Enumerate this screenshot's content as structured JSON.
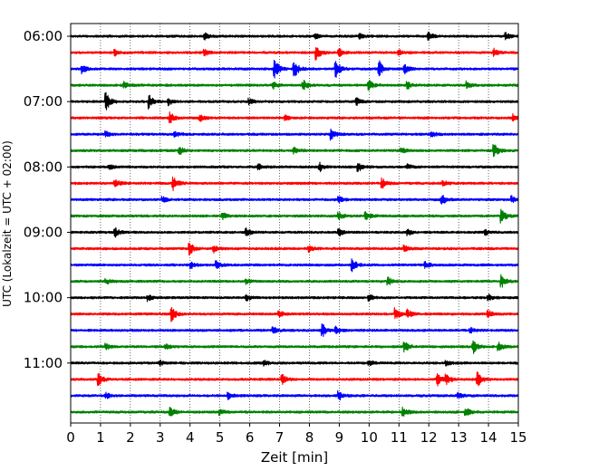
{
  "chart_data": {
    "type": "line",
    "title": "",
    "xlabel": "Zeit  [min]",
    "ylabel": "UTC (Lokalzeit = UTC + 02:00)",
    "xlim": [
      0,
      15
    ],
    "x_ticks": [
      0,
      1,
      2,
      3,
      4,
      5,
      6,
      7,
      8,
      9,
      10,
      11,
      12,
      13,
      14,
      15
    ],
    "y_tick_labels": [
      "06:00",
      "07:00",
      "08:00",
      "09:00",
      "10:00",
      "11:00"
    ],
    "y_tick_trace_index": [
      0,
      4,
      8,
      12,
      16,
      20
    ],
    "grid": "vertical",
    "colors_cycle": [
      "#000000",
      "#ff0000",
      "#0000ff",
      "#008000"
    ],
    "traces": [
      {
        "start": "06:00",
        "color": "#000000",
        "events": [
          [
            4.5,
            0.35
          ],
          [
            8.2,
            0.3
          ],
          [
            9.7,
            0.3
          ],
          [
            12.0,
            0.45
          ],
          [
            14.6,
            0.35
          ]
        ]
      },
      {
        "start": "06:15",
        "color": "#ff0000",
        "events": [
          [
            1.5,
            0.3
          ],
          [
            4.5,
            0.3
          ],
          [
            8.25,
            0.8
          ],
          [
            9.0,
            0.45
          ],
          [
            11.0,
            0.3
          ],
          [
            14.2,
            0.4
          ]
        ]
      },
      {
        "start": "06:30",
        "color": "#0000ff",
        "events": [
          [
            0.4,
            0.5
          ],
          [
            6.85,
            1.1
          ],
          [
            7.5,
            1.0
          ],
          [
            8.9,
            1.0
          ],
          [
            10.35,
            0.9
          ],
          [
            11.2,
            0.5
          ]
        ]
      },
      {
        "start": "06:45",
        "color": "#008000",
        "events": [
          [
            1.8,
            0.35
          ],
          [
            6.8,
            0.4
          ],
          [
            7.8,
            0.6
          ],
          [
            10.0,
            0.6
          ],
          [
            11.3,
            0.4
          ],
          [
            13.3,
            0.4
          ]
        ]
      },
      {
        "start": "07:00",
        "color": "#000000",
        "events": [
          [
            1.2,
            1.0
          ],
          [
            2.65,
            0.8
          ],
          [
            3.3,
            0.4
          ],
          [
            6.0,
            0.35
          ],
          [
            9.6,
            0.35
          ]
        ]
      },
      {
        "start": "07:15",
        "color": "#ff0000",
        "events": [
          [
            3.35,
            0.6
          ],
          [
            4.35,
            0.5
          ],
          [
            7.2,
            0.3
          ],
          [
            14.85,
            0.4
          ]
        ]
      },
      {
        "start": "07:30",
        "color": "#0000ff",
        "events": [
          [
            1.2,
            0.3
          ],
          [
            3.5,
            0.3
          ],
          [
            8.75,
            0.6
          ],
          [
            12.1,
            0.3
          ]
        ]
      },
      {
        "start": "07:45",
        "color": "#008000",
        "events": [
          [
            3.65,
            0.5
          ],
          [
            7.5,
            0.3
          ],
          [
            11.1,
            0.3
          ],
          [
            14.2,
            0.7
          ]
        ]
      },
      {
        "start": "08:00",
        "color": "#000000",
        "events": [
          [
            1.3,
            0.3
          ],
          [
            6.3,
            0.3
          ],
          [
            8.35,
            0.5
          ],
          [
            9.65,
            0.5
          ],
          [
            11.3,
            0.3
          ]
        ]
      },
      {
        "start": "08:15",
        "color": "#ff0000",
        "events": [
          [
            1.5,
            0.5
          ],
          [
            3.45,
            0.8
          ],
          [
            10.45,
            0.6
          ],
          [
            12.5,
            0.3
          ]
        ]
      },
      {
        "start": "08:30",
        "color": "#0000ff",
        "events": [
          [
            3.1,
            0.3
          ],
          [
            9.0,
            0.35
          ],
          [
            12.45,
            0.6
          ],
          [
            14.8,
            0.4
          ]
        ]
      },
      {
        "start": "08:45",
        "color": "#008000",
        "events": [
          [
            5.1,
            0.35
          ],
          [
            9.0,
            0.5
          ],
          [
            9.9,
            0.5
          ],
          [
            14.45,
            0.8
          ]
        ]
      },
      {
        "start": "09:00",
        "color": "#000000",
        "events": [
          [
            1.5,
            0.5
          ],
          [
            5.9,
            0.4
          ],
          [
            9.0,
            0.4
          ],
          [
            11.3,
            0.4
          ],
          [
            13.9,
            0.35
          ]
        ]
      },
      {
        "start": "09:15",
        "color": "#ff0000",
        "events": [
          [
            4.0,
            0.7
          ],
          [
            4.8,
            0.4
          ],
          [
            8.0,
            0.35
          ],
          [
            11.2,
            0.4
          ]
        ]
      },
      {
        "start": "09:30",
        "color": "#0000ff",
        "events": [
          [
            4.05,
            0.35
          ],
          [
            4.9,
            0.4
          ],
          [
            9.45,
            0.7
          ],
          [
            11.9,
            0.35
          ]
        ]
      },
      {
        "start": "09:45",
        "color": "#008000",
        "events": [
          [
            1.2,
            0.3
          ],
          [
            5.9,
            0.3
          ],
          [
            10.65,
            0.45
          ],
          [
            14.45,
            0.7
          ]
        ]
      },
      {
        "start": "10:00",
        "color": "#000000",
        "events": [
          [
            2.6,
            0.35
          ],
          [
            5.9,
            0.3
          ],
          [
            10.0,
            0.35
          ],
          [
            14.0,
            0.35
          ]
        ]
      },
      {
        "start": "10:15",
        "color": "#ff0000",
        "events": [
          [
            3.4,
            0.8
          ],
          [
            7.0,
            0.35
          ],
          [
            10.9,
            0.7
          ],
          [
            11.3,
            0.5
          ],
          [
            14.0,
            0.4
          ]
        ]
      },
      {
        "start": "10:30",
        "color": "#0000ff",
        "events": [
          [
            6.8,
            0.35
          ],
          [
            8.45,
            0.7
          ],
          [
            8.9,
            0.4
          ],
          [
            13.4,
            0.35
          ]
        ]
      },
      {
        "start": "10:45",
        "color": "#008000",
        "events": [
          [
            1.2,
            0.3
          ],
          [
            3.2,
            0.3
          ],
          [
            11.2,
            0.6
          ],
          [
            13.5,
            0.8
          ],
          [
            14.35,
            0.5
          ]
        ]
      },
      {
        "start": "11:00",
        "color": "#000000",
        "events": [
          [
            3.0,
            0.3
          ],
          [
            6.5,
            0.3
          ],
          [
            10.0,
            0.3
          ],
          [
            12.6,
            0.3
          ]
        ]
      },
      {
        "start": "11:15",
        "color": "#ff0000",
        "events": [
          [
            0.95,
            0.7
          ],
          [
            7.1,
            0.6
          ],
          [
            12.3,
            0.7
          ],
          [
            12.6,
            0.6
          ],
          [
            13.65,
            0.8
          ]
        ]
      },
      {
        "start": "11:30",
        "color": "#0000ff",
        "events": [
          [
            1.2,
            0.3
          ],
          [
            5.3,
            0.35
          ],
          [
            9.0,
            0.5
          ],
          [
            13.0,
            0.3
          ]
        ]
      },
      {
        "start": "11:45",
        "color": "#008000",
        "events": [
          [
            3.35,
            0.6
          ],
          [
            5.0,
            0.3
          ],
          [
            11.15,
            0.5
          ],
          [
            13.25,
            0.5
          ]
        ]
      }
    ]
  }
}
